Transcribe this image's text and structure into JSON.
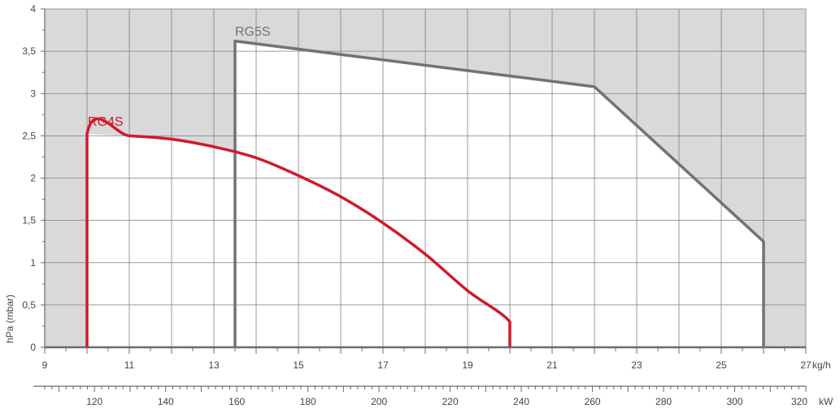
{
  "chart_data": {
    "type": "area",
    "ylabel": "hPa (mbar)",
    "x_unit": "kg/h",
    "x2_unit": "kW",
    "xlim": [
      9,
      27
    ],
    "ylim": [
      0,
      4
    ],
    "x_ticks": [
      9,
      11,
      13,
      15,
      17,
      19,
      21,
      23,
      25,
      27
    ],
    "x_tick_labels": [
      "9",
      "11",
      "13",
      "15",
      "17",
      "19",
      "21",
      "23",
      "25",
      "27"
    ],
    "y_ticks": [
      0,
      0.5,
      1,
      1.5,
      2,
      2.5,
      3,
      3.5,
      4
    ],
    "y_tick_labels": [
      "0",
      "0,5",
      "1",
      "1,5",
      "2",
      "2,5",
      "3",
      "3,5",
      "4"
    ],
    "x2_lim": [
      106,
      320
    ],
    "x2_ticks": [
      120,
      140,
      160,
      180,
      200,
      220,
      240,
      260,
      280,
      300,
      320
    ],
    "x2_tick_labels": [
      "120",
      "140",
      "160",
      "180",
      "200",
      "220",
      "240",
      "260",
      "280",
      "300",
      "320"
    ],
    "grid": true,
    "series": [
      {
        "name": "RG5S",
        "color": "#737373",
        "points": [
          [
            13.5,
            0
          ],
          [
            13.5,
            3.62
          ],
          [
            22,
            3.08
          ],
          [
            26,
            1.25
          ],
          [
            26,
            0
          ]
        ]
      },
      {
        "name": "RG4S",
        "color": "#d2182c",
        "points": [
          [
            10,
            0
          ],
          [
            10,
            2.52
          ],
          [
            11,
            2.5
          ],
          [
            12,
            2.46
          ],
          [
            13,
            2.37
          ],
          [
            14,
            2.24
          ],
          [
            15,
            2.03
          ],
          [
            16,
            1.78
          ],
          [
            17,
            1.47
          ],
          [
            18,
            1.1
          ],
          [
            19,
            0.67
          ],
          [
            20,
            0.3
          ],
          [
            20,
            0
          ]
        ]
      }
    ]
  },
  "colors": {
    "background_shade": "#d9d9d9",
    "grid": "#7f7f7f",
    "axis": "#6b6b6b"
  }
}
